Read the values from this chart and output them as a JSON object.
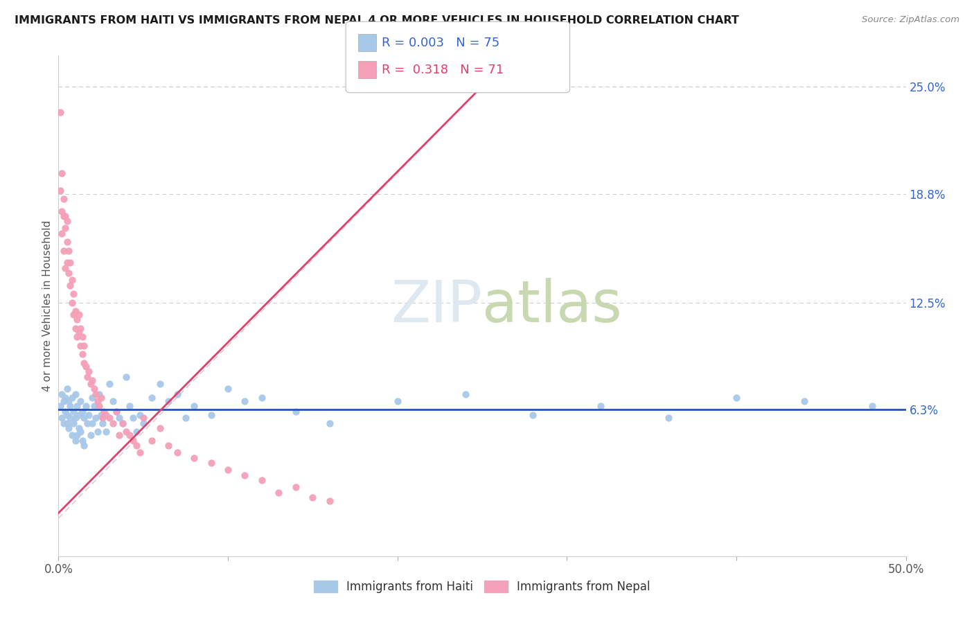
{
  "title": "IMMIGRANTS FROM HAITI VS IMMIGRANTS FROM NEPAL 4 OR MORE VEHICLES IN HOUSEHOLD CORRELATION CHART",
  "source_text": "Source: ZipAtlas.com",
  "ylabel": "4 or more Vehicles in Household",
  "xlim": [
    0.0,
    0.5
  ],
  "ylim": [
    -0.022,
    0.268
  ],
  "ytick_labels_right": [
    "25.0%",
    "18.8%",
    "12.5%",
    "6.3%"
  ],
  "ytick_vals_right": [
    0.25,
    0.188,
    0.125,
    0.063
  ],
  "haiti_R": "0.003",
  "haiti_N": "75",
  "nepal_R": "0.318",
  "nepal_N": "71",
  "haiti_color": "#a8c8e8",
  "nepal_color": "#f4a0b8",
  "haiti_line_color": "#2255bb",
  "nepal_line_color": "#e0406a",
  "diag_color": "#e0b0b8",
  "watermark_color": "#dde8f0",
  "background_color": "#ffffff",
  "haiti_scatter_x": [
    0.001,
    0.002,
    0.002,
    0.003,
    0.003,
    0.004,
    0.004,
    0.005,
    0.005,
    0.005,
    0.006,
    0.006,
    0.007,
    0.007,
    0.008,
    0.008,
    0.009,
    0.009,
    0.01,
    0.01,
    0.01,
    0.011,
    0.011,
    0.012,
    0.012,
    0.013,
    0.013,
    0.014,
    0.014,
    0.015,
    0.015,
    0.016,
    0.017,
    0.018,
    0.019,
    0.02,
    0.02,
    0.021,
    0.022,
    0.023,
    0.024,
    0.025,
    0.026,
    0.028,
    0.03,
    0.032,
    0.034,
    0.036,
    0.038,
    0.04,
    0.042,
    0.044,
    0.046,
    0.048,
    0.05,
    0.055,
    0.06,
    0.065,
    0.07,
    0.075,
    0.08,
    0.09,
    0.1,
    0.11,
    0.12,
    0.14,
    0.16,
    0.2,
    0.24,
    0.28,
    0.32,
    0.36,
    0.4,
    0.44,
    0.48
  ],
  "haiti_scatter_y": [
    0.065,
    0.072,
    0.058,
    0.068,
    0.055,
    0.07,
    0.062,
    0.075,
    0.06,
    0.055,
    0.068,
    0.052,
    0.065,
    0.058,
    0.07,
    0.048,
    0.062,
    0.055,
    0.072,
    0.058,
    0.045,
    0.065,
    0.048,
    0.06,
    0.052,
    0.068,
    0.05,
    0.062,
    0.045,
    0.058,
    0.042,
    0.065,
    0.055,
    0.06,
    0.048,
    0.07,
    0.055,
    0.065,
    0.058,
    0.05,
    0.072,
    0.06,
    0.055,
    0.05,
    0.078,
    0.068,
    0.062,
    0.058,
    0.055,
    0.082,
    0.065,
    0.058,
    0.05,
    0.06,
    0.055,
    0.07,
    0.078,
    0.068,
    0.072,
    0.058,
    0.065,
    0.06,
    0.075,
    0.068,
    0.07,
    0.062,
    0.055,
    0.068,
    0.072,
    0.06,
    0.065,
    0.058,
    0.07,
    0.068,
    0.065
  ],
  "nepal_scatter_x": [
    0.001,
    0.001,
    0.002,
    0.002,
    0.002,
    0.003,
    0.003,
    0.003,
    0.004,
    0.004,
    0.004,
    0.005,
    0.005,
    0.005,
    0.006,
    0.006,
    0.007,
    0.007,
    0.008,
    0.008,
    0.009,
    0.009,
    0.01,
    0.01,
    0.011,
    0.011,
    0.012,
    0.012,
    0.013,
    0.013,
    0.014,
    0.014,
    0.015,
    0.015,
    0.016,
    0.017,
    0.018,
    0.019,
    0.02,
    0.021,
    0.022,
    0.023,
    0.024,
    0.025,
    0.026,
    0.027,
    0.028,
    0.03,
    0.032,
    0.034,
    0.036,
    0.038,
    0.04,
    0.042,
    0.044,
    0.046,
    0.048,
    0.05,
    0.055,
    0.06,
    0.065,
    0.07,
    0.08,
    0.09,
    0.1,
    0.11,
    0.12,
    0.13,
    0.14,
    0.15,
    0.16
  ],
  "nepal_scatter_y": [
    0.235,
    0.19,
    0.2,
    0.178,
    0.165,
    0.175,
    0.155,
    0.185,
    0.168,
    0.145,
    0.175,
    0.16,
    0.148,
    0.172,
    0.142,
    0.155,
    0.135,
    0.148,
    0.125,
    0.138,
    0.118,
    0.13,
    0.12,
    0.11,
    0.115,
    0.105,
    0.108,
    0.118,
    0.1,
    0.11,
    0.095,
    0.105,
    0.09,
    0.1,
    0.088,
    0.082,
    0.085,
    0.078,
    0.08,
    0.075,
    0.072,
    0.068,
    0.065,
    0.07,
    0.058,
    0.062,
    0.06,
    0.058,
    0.055,
    0.062,
    0.048,
    0.055,
    0.05,
    0.048,
    0.045,
    0.042,
    0.038,
    0.058,
    0.045,
    0.052,
    0.042,
    0.038,
    0.035,
    0.032,
    0.028,
    0.025,
    0.022,
    0.015,
    0.018,
    0.012,
    0.01
  ],
  "nepal_line_x": [
    0.0,
    0.27
  ],
  "nepal_line_y": [
    0.003,
    0.27
  ],
  "haiti_line_y": [
    0.063,
    0.063
  ]
}
